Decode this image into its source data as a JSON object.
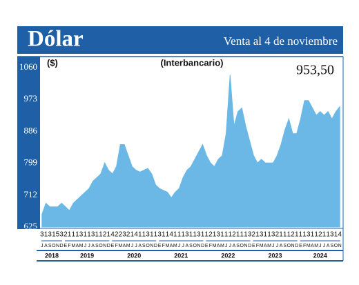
{
  "chart_data": {
    "type": "area",
    "title": "Dólar",
    "subtitle": "Venta al 4 de noviembre",
    "unit_label": "($)",
    "annotation": "(Interbancario)",
    "color": "#6bb8e6",
    "categories": [
      "J",
      "A",
      "S",
      "O",
      "N",
      "D",
      "E",
      "F",
      "M",
      "A",
      "M",
      "J",
      "J",
      "A",
      "S",
      "O",
      "N",
      "D",
      "E",
      "F",
      "M",
      "A",
      "M",
      "J",
      "J",
      "A",
      "S",
      "O",
      "N",
      "D",
      "E",
      "F",
      "M",
      "A",
      "M",
      "J",
      "J",
      "A",
      "S",
      "O",
      "N",
      "D",
      "E",
      "F",
      "M",
      "A",
      "M",
      "J",
      "J",
      "A",
      "S",
      "O",
      "N",
      "D",
      "E",
      "F",
      "M",
      "A",
      "M",
      "J",
      "J",
      "A",
      "S",
      "O",
      "N",
      "D",
      "E",
      "F",
      "M",
      "A",
      "M",
      "J",
      "J",
      "A",
      "S",
      "O",
      "N"
    ],
    "day_labels": [
      3,
      1,
      3,
      1,
      5,
      3,
      2,
      1,
      1,
      1,
      3,
      1,
      1,
      3,
      1,
      1,
      2,
      1,
      4,
      2,
      2,
      3,
      2,
      1,
      4,
      1,
      1,
      3,
      1,
      1,
      3,
      1,
      1,
      4,
      1,
      1,
      1,
      3,
      1,
      1,
      3,
      1,
      1,
      2,
      1,
      3,
      1,
      1,
      1,
      2,
      1,
      1,
      1,
      3,
      2,
      1,
      3,
      1,
      1,
      3,
      2,
      1,
      1,
      1,
      2,
      1,
      1,
      1,
      3,
      1,
      1,
      2,
      1,
      1,
      3,
      1,
      4
    ],
    "years": [
      "2018",
      "2019",
      "2020",
      "2021",
      "2022",
      "2023",
      "2024"
    ],
    "values": [
      660,
      690,
      680,
      680,
      680,
      690,
      680,
      670,
      690,
      700,
      710,
      720,
      730,
      750,
      760,
      770,
      800,
      780,
      770,
      790,
      850,
      850,
      820,
      790,
      780,
      775,
      780,
      785,
      770,
      740,
      730,
      725,
      720,
      705,
      720,
      730,
      760,
      780,
      790,
      810,
      830,
      850,
      820,
      800,
      790,
      810,
      820,
      880,
      1040,
      900,
      940,
      950,
      900,
      860,
      820,
      800,
      810,
      800,
      800,
      800,
      820,
      850,
      890,
      920,
      880,
      880,
      920,
      970,
      970,
      950,
      930,
      940,
      930,
      940,
      920,
      940,
      953.5
    ],
    "value_labels": [
      null,
      null,
      null,
      null,
      null,
      null,
      null,
      null,
      null,
      null,
      null,
      null,
      null,
      null,
      null,
      null,
      null,
      null,
      null,
      null,
      null,
      null,
      null,
      null,
      null,
      null,
      null,
      null,
      null,
      null,
      null,
      null,
      null,
      null,
      null,
      null,
      null,
      null,
      null,
      null,
      null,
      null,
      null,
      null,
      null,
      null,
      null,
      null,
      null,
      null,
      null,
      null,
      null,
      null,
      null,
      null,
      null,
      null,
      null,
      null,
      null,
      null,
      null,
      null,
      null,
      null,
      null,
      null,
      null,
      null,
      null,
      null,
      null,
      null,
      null,
      null,
      "953,50"
    ],
    "ylim": [
      625,
      1060
    ],
    "yticks": [
      625,
      712,
      799,
      886,
      973,
      1060
    ],
    "grid": false
  }
}
